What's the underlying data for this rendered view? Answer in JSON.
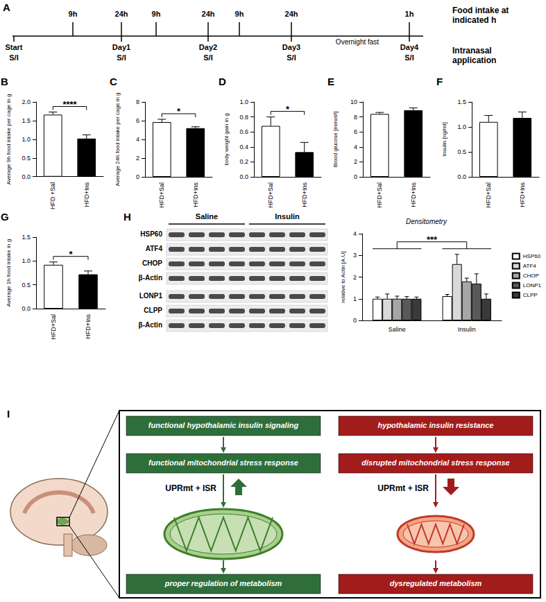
{
  "timeline": {
    "panel": "A",
    "top_labels": [
      "9h",
      "24h",
      "9h",
      "24h",
      "9h",
      "24h",
      "1h"
    ],
    "top_title": "Food intake at indicated h",
    "bottom_labels": [
      {
        "day": "Start",
        "sub": "S/I"
      },
      {
        "day": "Day1",
        "sub": "S/I"
      },
      {
        "day": "Day2",
        "sub": "S/I"
      },
      {
        "day": "Day3",
        "sub": "S/I"
      },
      {
        "day": "Day4",
        "sub": "S/I"
      }
    ],
    "bottom_title": "Intranasal application",
    "note": "Overnight fast"
  },
  "chart_data": [
    {
      "panel": "B",
      "type": "bar",
      "ylabel": "Average 9h food intake per cage in g",
      "categories": [
        "HFD +Sal",
        "HFD+Ins"
      ],
      "values": [
        1.66,
        1.02
      ],
      "errors": [
        0.07,
        0.1
      ],
      "colors": [
        "#ffffff",
        "#000000"
      ],
      "ylim": [
        0,
        2
      ],
      "yticks": [
        {
          "value": 0,
          "label": "0.0"
        },
        {
          "value": 0.5,
          "label": "0.5"
        },
        {
          "value": 1,
          "label": "1.0"
        },
        {
          "value": 1.5,
          "label": "1.5"
        },
        {
          "value": 2,
          "label": "2.0"
        }
      ],
      "significance": "****",
      "grid": false
    },
    {
      "panel": "C",
      "type": "bar",
      "ylabel": "Average 24h food intake per cage in g",
      "categories": [
        "HFD+Sal",
        "HFD+Ins"
      ],
      "values": [
        5.85,
        5.2
      ],
      "errors": [
        0.3,
        0.15
      ],
      "colors": [
        "#ffffff",
        "#000000"
      ],
      "ylim": [
        0,
        8
      ],
      "yticks": [
        0,
        2,
        4,
        6,
        8
      ],
      "significance": "*",
      "grid": false
    },
    {
      "panel": "D",
      "type": "bar",
      "ylabel": "body weight gain in g",
      "categories": [
        "HFD+Sal",
        "HFD+Ins"
      ],
      "values": [
        0.68,
        0.33
      ],
      "errors": [
        0.12,
        0.13
      ],
      "colors": [
        "#ffffff",
        "#000000"
      ],
      "ylim": [
        0,
        1
      ],
      "yticks": [
        {
          "value": 0,
          "label": "0.0"
        },
        0.2,
        0.4,
        0.6,
        0.8,
        {
          "value": 1,
          "label": "1.0"
        }
      ],
      "significance": "*",
      "grid": false
    },
    {
      "panel": "E",
      "type": "bar",
      "ylabel": "Blood glucose [mmol/l]",
      "categories": [
        "HFD+Sal",
        "HFD+Ins"
      ],
      "values": [
        8.4,
        8.9
      ],
      "errors": [
        0.2,
        0.3
      ],
      "colors": [
        "#ffffff",
        "#000000"
      ],
      "ylim": [
        0,
        10
      ],
      "yticks": [
        0,
        2,
        4,
        6,
        8,
        10
      ],
      "grid": false
    },
    {
      "panel": "F",
      "type": "bar",
      "ylabel": "Insulin [ng/ml]",
      "categories": [
        "HFD+Sal",
        "HFD+Ins"
      ],
      "values": [
        1.1,
        1.18
      ],
      "errors": [
        0.13,
        0.12
      ],
      "colors": [
        "#ffffff",
        "#000000"
      ],
      "ylim": [
        0,
        1.5
      ],
      "yticks": [
        {
          "value": 0,
          "label": "0.0"
        },
        {
          "value": 0.5,
          "label": "0.5"
        },
        {
          "value": 1,
          "label": "1.0"
        },
        {
          "value": 1.5,
          "label": "1.5"
        }
      ],
      "grid": false
    },
    {
      "panel": "G",
      "type": "bar",
      "ylabel": "Average 1h food intake in g",
      "categories": [
        "HFD+Sal",
        "HFD+Ins"
      ],
      "values": [
        0.92,
        0.72
      ],
      "errors": [
        0.06,
        0.07
      ],
      "colors": [
        "#ffffff",
        "#000000"
      ],
      "ylim": [
        0,
        1.5
      ],
      "yticks": [
        {
          "value": 0,
          "label": "0.0"
        },
        {
          "value": 0.5,
          "label": "0.5"
        },
        {
          "value": 1,
          "label": "1.0"
        },
        {
          "value": 1.5,
          "label": "1.5"
        }
      ],
      "significance": "*",
      "grid": false
    },
    {
      "type": "bar",
      "title": "Densitometry",
      "ylabel": "relative to Actin [A.U]",
      "categories": [
        "Saline",
        "Insulin"
      ],
      "series": [
        {
          "name": "HSP60",
          "color": "#ffffff",
          "values": [
            1.0,
            1.12
          ],
          "errors": [
            0.08,
            0.08
          ]
        },
        {
          "name": "ATF4",
          "color": "#d9d9d9",
          "values": [
            1.0,
            2.6
          ],
          "errors": [
            0.22,
            0.45
          ]
        },
        {
          "name": "CHOP",
          "color": "#a6a6a6",
          "values": [
            1.0,
            1.8
          ],
          "errors": [
            0.12,
            0.15
          ]
        },
        {
          "name": "LONP1",
          "color": "#595959",
          "values": [
            1.0,
            1.7
          ],
          "errors": [
            0.1,
            0.45
          ]
        },
        {
          "name": "CLPP",
          "color": "#3a3a3a",
          "values": [
            1.0,
            1.0
          ],
          "errors": [
            0.08,
            0.22
          ]
        }
      ],
      "ylim": [
        0,
        4
      ],
      "yticks": [
        0,
        1,
        2,
        3,
        4
      ],
      "significance": "***",
      "legend": "right",
      "grid": false
    }
  ],
  "blot": {
    "panel": "H",
    "groups": [
      "Saline",
      "Insulin"
    ],
    "lanes_per_group": 4,
    "rows": [
      "HSP60",
      "ATF4",
      "CHOP",
      "β-Actin",
      "LONP1",
      "CLPP",
      "β-Actin"
    ]
  },
  "diagram": {
    "panel": "I",
    "columns": [
      {
        "steps": [
          "functional hypothalamic insulin signaling",
          "functional mitochondrial stress response",
          "proper regulation of metabolism"
        ],
        "response": "UPRmt + ISR",
        "direction": "up"
      },
      {
        "steps": [
          "hypothalamic insulin resistance",
          "disrupted mitochondrial stress response",
          "dysregulated metabolism"
        ],
        "response": "UPRmt + ISR",
        "direction": "down"
      }
    ]
  }
}
